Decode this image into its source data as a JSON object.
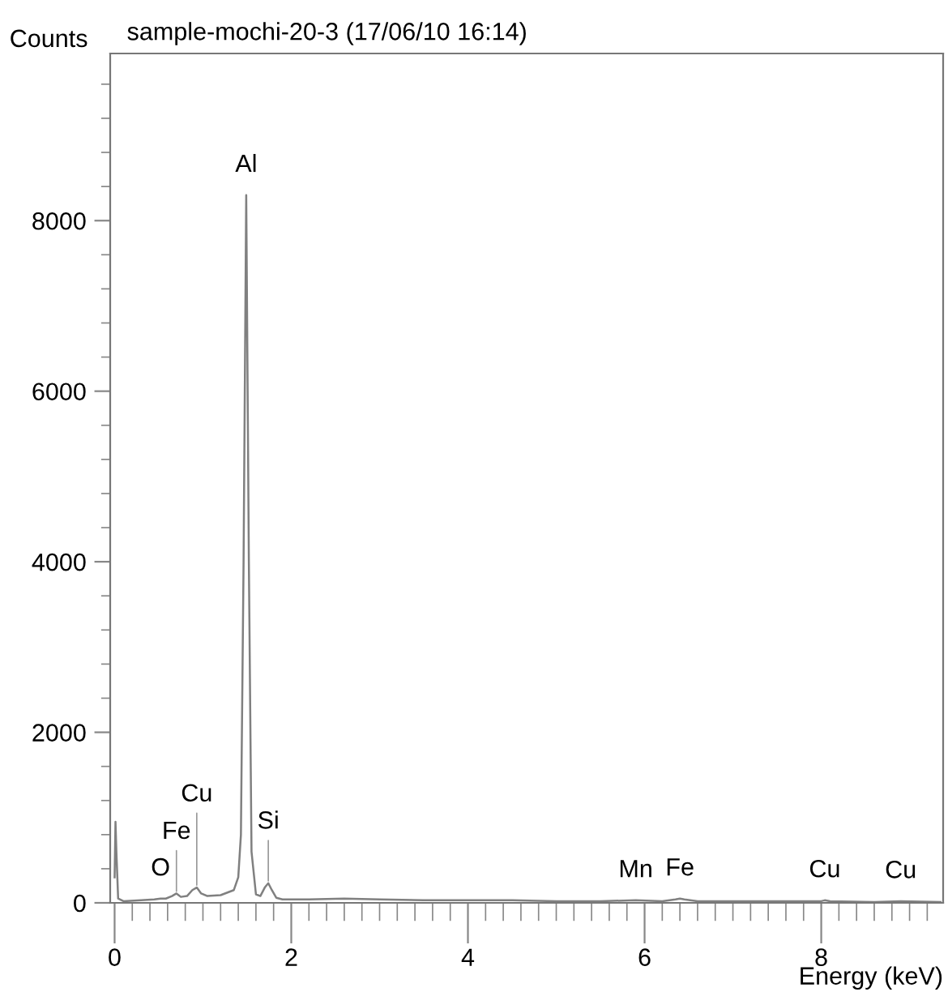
{
  "chart_data": {
    "type": "line",
    "title": "sample-mochi-20-3 (17/06/10 16:14)",
    "xlabel": "Energy (keV)",
    "ylabel": "Counts",
    "x": [
      0.0,
      0.01,
      0.02,
      0.04,
      0.1,
      0.3,
      0.45,
      0.52,
      0.58,
      0.65,
      0.7,
      0.75,
      0.82,
      0.88,
      0.93,
      0.98,
      1.05,
      1.2,
      1.35,
      1.4,
      1.43,
      1.46,
      1.49,
      1.52,
      1.55,
      1.6,
      1.65,
      1.7,
      1.74,
      1.78,
      1.83,
      1.9,
      2.2,
      2.6,
      3.0,
      3.5,
      4.0,
      4.5,
      5.0,
      5.5,
      5.9,
      6.2,
      6.35,
      6.4,
      6.45,
      6.6,
      7.0,
      7.5,
      8.0,
      8.04,
      8.1,
      8.6,
      8.9,
      9.35
    ],
    "series": [
      {
        "color": "#808080",
        "values": [
          300,
          950,
          600,
          50,
          20,
          30,
          40,
          50,
          50,
          80,
          110,
          70,
          80,
          150,
          180,
          110,
          80,
          90,
          150,
          300,
          800,
          4000,
          8300,
          4000,
          600,
          100,
          80,
          180,
          230,
          150,
          60,
          40,
          40,
          50,
          40,
          30,
          30,
          30,
          20,
          20,
          30,
          20,
          40,
          50,
          40,
          20,
          20,
          20,
          20,
          30,
          20,
          10,
          20,
          10
        ]
      }
    ],
    "xlim": [
      -0.05,
      9.38
    ],
    "ylim": [
      0,
      9960
    ],
    "xticks": [
      0,
      {
        "value": 0.2,
        "label": null
      },
      {
        "value": 0.4,
        "label": null
      },
      {
        "value": 0.6,
        "label": null
      },
      {
        "value": 0.8,
        "label": null
      },
      {
        "value": 1,
        "label": null
      },
      {
        "value": 1.2,
        "label": null
      },
      {
        "value": 1.4,
        "label": null
      },
      {
        "value": 1.6,
        "label": null
      },
      {
        "value": 1.8,
        "label": null
      },
      2,
      {
        "value": 2.2,
        "label": null
      },
      {
        "value": 2.4,
        "label": null
      },
      {
        "value": 2.6,
        "label": null
      },
      {
        "value": 2.8,
        "label": null
      },
      {
        "value": 3,
        "label": null
      },
      {
        "value": 3.2,
        "label": null
      },
      {
        "value": 3.4,
        "label": null
      },
      {
        "value": 3.6,
        "label": null
      },
      {
        "value": 3.8,
        "label": null
      },
      4,
      {
        "value": 4.2,
        "label": null
      },
      {
        "value": 4.4,
        "label": null
      },
      {
        "value": 4.6,
        "label": null
      },
      {
        "value": 4.8,
        "label": null
      },
      {
        "value": 5,
        "label": null
      },
      {
        "value": 5.2,
        "label": null
      },
      {
        "value": 5.4,
        "label": null
      },
      {
        "value": 5.6,
        "label": null
      },
      {
        "value": 5.8,
        "label": null
      },
      6,
      {
        "value": 6.2,
        "label": null
      },
      {
        "value": 6.4,
        "label": null
      },
      {
        "value": 6.6,
        "label": null
      },
      {
        "value": 6.8,
        "label": null
      },
      {
        "value": 7,
        "label": null
      },
      {
        "value": 7.2,
        "label": null
      },
      {
        "value": 7.4,
        "label": null
      },
      {
        "value": 7.6,
        "label": null
      },
      {
        "value": 7.8,
        "label": null
      },
      8,
      {
        "value": 8.2,
        "label": null
      },
      {
        "value": 8.4,
        "label": null
      },
      {
        "value": 8.6,
        "label": null
      },
      {
        "value": 8.8,
        "label": null
      },
      {
        "value": 9,
        "label": null
      },
      {
        "value": 9.2,
        "label": null
      }
    ],
    "yticks": [
      0,
      {
        "value": 400,
        "label": null
      },
      {
        "value": 800,
        "label": null
      },
      {
        "value": 1200,
        "label": null
      },
      {
        "value": 1600,
        "label": null
      },
      2000,
      {
        "value": 2400,
        "label": null
      },
      {
        "value": 2800,
        "label": null
      },
      {
        "value": 3200,
        "label": null
      },
      {
        "value": 3600,
        "label": null
      },
      4000,
      {
        "value": 4400,
        "label": null
      },
      {
        "value": 4800,
        "label": null
      },
      {
        "value": 5200,
        "label": null
      },
      {
        "value": 5600,
        "label": null
      },
      6000,
      {
        "value": 6400,
        "label": null
      },
      {
        "value": 6800,
        "label": null
      },
      {
        "value": 7200,
        "label": null
      },
      {
        "value": 7600,
        "label": null
      },
      8000,
      {
        "value": 8400,
        "label": null
      },
      {
        "value": 8800,
        "label": null
      },
      {
        "value": 9200,
        "label": null
      },
      {
        "value": 9600,
        "label": null
      }
    ],
    "grid": false,
    "marker": "none",
    "line_style": "solid",
    "annotations": [
      {
        "text": "O",
        "x": 0.52,
        "y": 50
      },
      {
        "text": "Fe",
        "x": 0.7,
        "y": 110
      },
      {
        "text": "Cu",
        "x": 0.93,
        "y": 180
      },
      {
        "text": "Al",
        "x": 1.49,
        "y": 8300
      },
      {
        "text": "Si",
        "x": 1.74,
        "y": 230
      },
      {
        "text": "Mn",
        "x": 5.9,
        "y": 30
      },
      {
        "text": "Fe",
        "x": 6.4,
        "y": 50
      },
      {
        "text": "Cu",
        "x": 8.04,
        "y": 30
      },
      {
        "text": "Cu",
        "x": 8.9,
        "y": 20
      }
    ]
  }
}
